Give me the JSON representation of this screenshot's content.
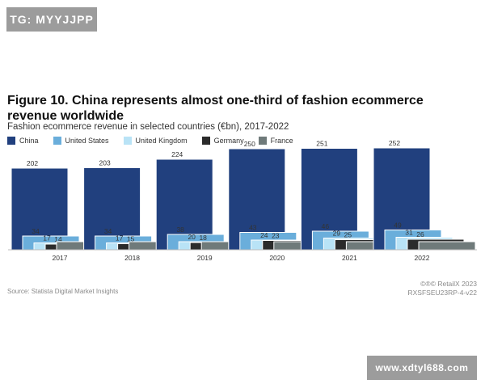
{
  "watermark_top": "TG: MYYJJPP",
  "watermark_bottom": "www.xdtyl688.com",
  "source": "Source: Statista Digital Market Insights",
  "credit_line1": "©®© RetailX 2023",
  "credit_line2": "RXSFSEU23RP-4-v22",
  "chart_data": {
    "type": "bar",
    "title": "Figure 10. China represents almost one-third of fashion ecommerce revenue worldwide",
    "subtitle": "Fashion ecommerce revenue in selected countries (€bn), 2017-2022",
    "categories": [
      "2017",
      "2018",
      "2019",
      "2020",
      "2021",
      "2022"
    ],
    "series": [
      {
        "name": "China",
        "color": "#21407e",
        "values": [
          202,
          203,
          224,
          250,
          251,
          252
        ]
      },
      {
        "name": "United States",
        "color": "#6aaedb",
        "values": [
          34,
          34,
          38,
          43,
          46,
          49
        ]
      },
      {
        "name": "United Kingdom",
        "color": "#b9e3f6",
        "values": [
          17,
          17,
          20,
          24,
          29,
          31
        ]
      },
      {
        "name": "Germany",
        "color": "#2b2b2b",
        "values": [
          14,
          15,
          18,
          23,
          25,
          26
        ]
      },
      {
        "name": "France",
        "color": "#6f7a7a",
        "values": [
          null,
          null,
          null,
          null,
          null,
          null
        ]
      }
    ],
    "legend_placement": "top-left",
    "grid": false
  }
}
